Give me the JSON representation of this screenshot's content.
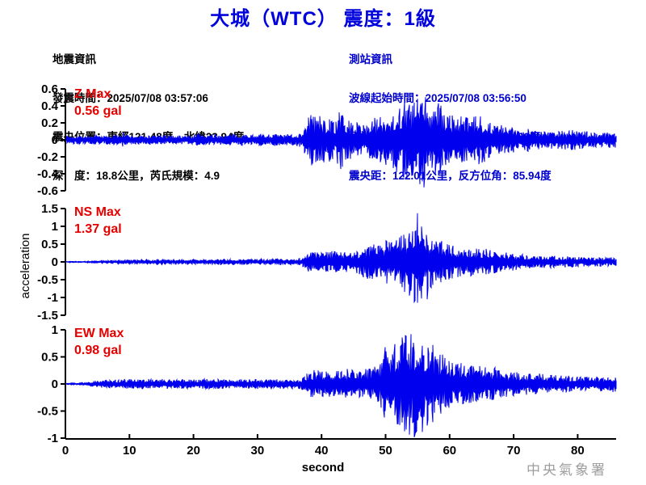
{
  "title": "大城（WTC） 震度：1級",
  "quake_info": {
    "lines": [
      "地震資訊",
      "發震時間：2025/07/08 03:57:06",
      "震央位置：東經121.48度，北緯23.94度",
      "深　度：18.8公里，芮氏規模：4.9"
    ]
  },
  "station_info": {
    "lines": [
      "測站資訊",
      "波線起始時間：2025/07/08 03:56:50",
      "測站位置：東經120.29度，北緯23.86度",
      "震央距：122.01公里，反方位角：85.94度"
    ]
  },
  "ylabel": "acceleration",
  "x_axis": {
    "label": "second",
    "ticks": [
      0,
      10,
      20,
      30,
      40,
      50,
      60,
      70,
      80
    ],
    "range_seconds": [
      0,
      86
    ]
  },
  "watermark": "中央氣象署",
  "colors": {
    "title_blue": "#0000DD",
    "info_blue": "#0000CC",
    "trace_blue": "#0000EE",
    "max_red": "#E60000",
    "watermark_gray": "#9E9E9E"
  },
  "chart_data": [
    {
      "type": "line",
      "channel": "Z",
      "max_label": "Z Max",
      "max_value_label": "0.56 gal",
      "max_gal": 0.56,
      "ylim": [
        -0.6,
        0.6
      ],
      "yticks": [
        0.6,
        0.4,
        0.2,
        0,
        -0.2,
        -0.4,
        -0.6
      ],
      "ytick_labels": [
        "0.6",
        "0.4",
        "0.2",
        "0",
        "-0.2",
        "-0.4",
        "-0.6"
      ],
      "envelope_gal_per_second": [
        0.05,
        0.05,
        0.05,
        0.05,
        0.05,
        0.05,
        0.05,
        0.05,
        0.06,
        0.09,
        0.05,
        0.05,
        0.05,
        0.05,
        0.06,
        0.05,
        0.05,
        0.06,
        0.05,
        0.05,
        0.06,
        0.08,
        0.06,
        0.06,
        0.06,
        0.06,
        0.07,
        0.06,
        0.07,
        0.06,
        0.08,
        0.06,
        0.07,
        0.07,
        0.06,
        0.07,
        0.07,
        0.1,
        0.3,
        0.33,
        0.28,
        0.26,
        0.24,
        0.36,
        0.25,
        0.22,
        0.2,
        0.22,
        0.25,
        0.28,
        0.3,
        0.34,
        0.4,
        0.46,
        0.44,
        0.52,
        0.56,
        0.42,
        0.48,
        0.36,
        0.32,
        0.3,
        0.28,
        0.26,
        0.28,
        0.3,
        0.24,
        0.2,
        0.18,
        0.16,
        0.15,
        0.14,
        0.15,
        0.13,
        0.12,
        0.12,
        0.11,
        0.11,
        0.12,
        0.13,
        0.11,
        0.1,
        0.1,
        0.09,
        0.09,
        0.1,
        0.09,
        0.09
      ],
      "peaks": [
        {
          "t": 56,
          "v": -0.56
        },
        {
          "t": 53,
          "v": 0.45
        }
      ],
      "seed": 7,
      "color": "#0000EE"
    },
    {
      "type": "line",
      "channel": "NS",
      "max_label": "NS Max",
      "max_value_label": "1.37 gal",
      "max_gal": 1.37,
      "ylim": [
        -1.5,
        1.5
      ],
      "yticks": [
        1.5,
        1,
        0.5,
        0,
        -0.5,
        -1,
        -1.5
      ],
      "ytick_labels": [
        "1.5",
        "1",
        "0.5",
        "0",
        "-0.5",
        "-1",
        "-1.5"
      ],
      "envelope_gal_per_second": [
        0.02,
        0.02,
        0.02,
        0.02,
        0.03,
        0.03,
        0.04,
        0.04,
        0.05,
        0.05,
        0.06,
        0.06,
        0.06,
        0.06,
        0.07,
        0.07,
        0.06,
        0.07,
        0.07,
        0.06,
        0.07,
        0.07,
        0.07,
        0.07,
        0.08,
        0.07,
        0.08,
        0.07,
        0.08,
        0.08,
        0.08,
        0.08,
        0.08,
        0.09,
        0.08,
        0.08,
        0.09,
        0.12,
        0.28,
        0.32,
        0.3,
        0.28,
        0.32,
        0.3,
        0.28,
        0.32,
        0.38,
        0.48,
        0.58,
        0.52,
        0.62,
        0.58,
        0.75,
        0.85,
        1.0,
        1.37,
        0.95,
        0.75,
        0.62,
        0.58,
        0.52,
        0.46,
        0.42,
        0.4,
        0.38,
        0.42,
        0.36,
        0.32,
        0.3,
        0.26,
        0.24,
        0.22,
        0.21,
        0.2,
        0.19,
        0.18,
        0.17,
        0.16,
        0.16,
        0.15,
        0.14,
        0.14,
        0.13,
        0.13,
        0.12,
        0.12,
        0.11,
        0.12
      ],
      "peaks": [
        {
          "t": 55,
          "v": 1.37
        },
        {
          "t": 56.5,
          "v": -1.05
        }
      ],
      "seed": 13,
      "color": "#0000EE"
    },
    {
      "type": "line",
      "channel": "EW",
      "max_label": "EW Max",
      "max_value_label": "0.98 gal",
      "max_gal": 0.98,
      "ylim": [
        -1,
        1
      ],
      "yticks": [
        1,
        0.5,
        0,
        -0.5,
        -1
      ],
      "ytick_labels": [
        "1",
        "0.5",
        "0",
        "-0.5",
        "-1"
      ],
      "envelope_gal_per_second": [
        0.02,
        0.02,
        0.02,
        0.03,
        0.04,
        0.06,
        0.07,
        0.08,
        0.08,
        0.09,
        0.09,
        0.08,
        0.09,
        0.09,
        0.08,
        0.09,
        0.09,
        0.08,
        0.09,
        0.09,
        0.09,
        0.1,
        0.09,
        0.09,
        0.09,
        0.08,
        0.09,
        0.09,
        0.08,
        0.09,
        0.09,
        0.09,
        0.1,
        0.09,
        0.09,
        0.09,
        0.1,
        0.11,
        0.24,
        0.26,
        0.24,
        0.26,
        0.24,
        0.26,
        0.28,
        0.26,
        0.26,
        0.28,
        0.3,
        0.36,
        0.8,
        0.7,
        0.85,
        0.9,
        0.98,
        0.92,
        0.88,
        0.78,
        0.62,
        0.56,
        0.46,
        0.42,
        0.38,
        0.4,
        0.36,
        0.32,
        0.3,
        0.32,
        0.26,
        0.24,
        0.22,
        0.24,
        0.22,
        0.2,
        0.19,
        0.18,
        0.16,
        0.17,
        0.16,
        0.15,
        0.14,
        0.15,
        0.13,
        0.14,
        0.13,
        0.14,
        0.16,
        0.13
      ],
      "peaks": [
        {
          "t": 54.5,
          "v": -0.98
        },
        {
          "t": 54,
          "v": 0.92
        }
      ],
      "seed": 29,
      "color": "#0000EE"
    }
  ]
}
